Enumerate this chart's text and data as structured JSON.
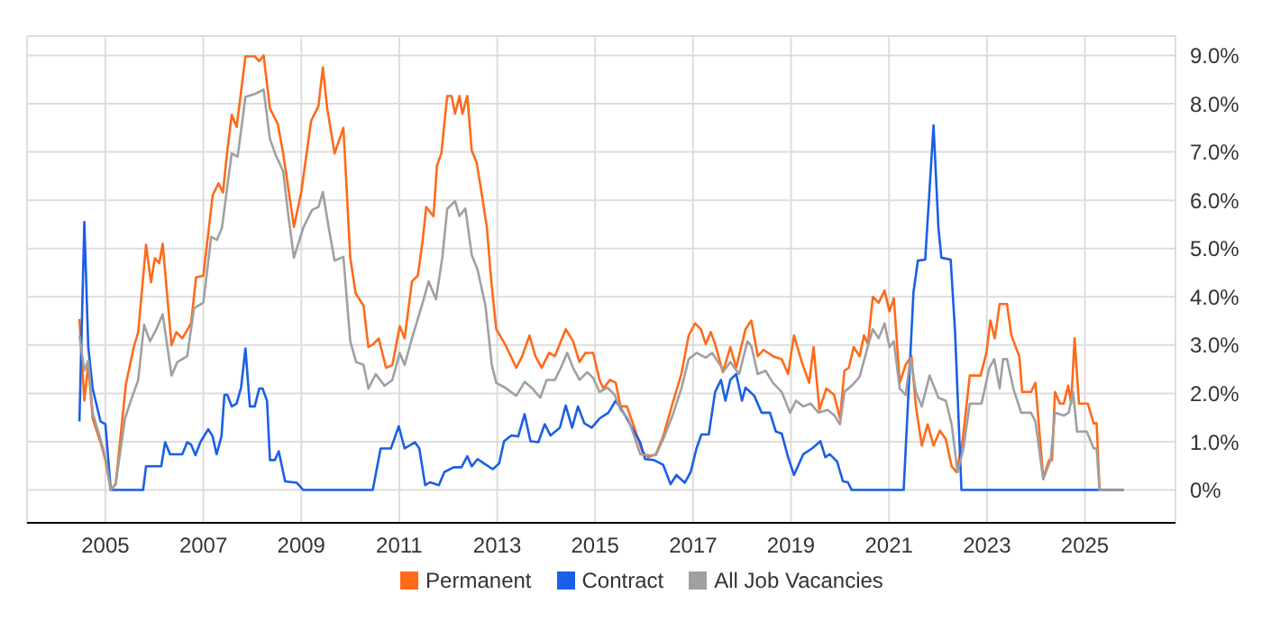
{
  "chart_data": {
    "type": "line",
    "xlim": [
      2003.4,
      2026.85
    ],
    "xticks": [
      2005,
      2007,
      2009,
      2011,
      2013,
      2015,
      2017,
      2019,
      2021,
      2023,
      2025
    ],
    "ylim": [
      -0.68,
      9.4
    ],
    "yticks": [
      {
        "value": 0,
        "label": "0%"
      },
      {
        "value": 1,
        "label": "1.0%"
      },
      {
        "value": 2,
        "label": "2.0%"
      },
      {
        "value": 3,
        "label": "3.0%"
      },
      {
        "value": 4,
        "label": "4.0%"
      },
      {
        "value": 5,
        "label": "5.0%"
      },
      {
        "value": 6,
        "label": "6.0%"
      },
      {
        "value": 7,
        "label": "7.0%"
      },
      {
        "value": 8,
        "label": "8.0%"
      },
      {
        "value": 9,
        "label": "9.0%"
      }
    ],
    "grid": true,
    "legend": "bottom",
    "marker": "none",
    "line_style": "solid",
    "series": [
      {
        "name": "Permanent",
        "color": "#ff6a1a",
        "x": [
          2004.47,
          2004.57,
          2004.65,
          2004.74,
          2004.9,
          2005.0,
          2005.11,
          2005.21,
          2005.42,
          2005.58,
          2005.67,
          2005.83,
          2005.93,
          2006.01,
          2006.1,
          2006.17,
          2006.35,
          2006.45,
          2006.57,
          2006.75,
          2006.85,
          2007.0,
          2007.19,
          2007.31,
          2007.4,
          2007.49,
          2007.58,
          2007.68,
          2007.86,
          2008.05,
          2008.14,
          2008.23,
          2008.36,
          2008.52,
          2008.63,
          2008.85,
          2009.0,
          2009.2,
          2009.35,
          2009.44,
          2009.53,
          2009.68,
          2009.86,
          2010.0,
          2010.11,
          2010.27,
          2010.37,
          2010.47,
          2010.58,
          2010.73,
          2010.86,
          2011.01,
          2011.11,
          2011.26,
          2011.38,
          2011.48,
          2011.55,
          2011.7,
          2011.77,
          2011.86,
          2011.98,
          2012.07,
          2012.14,
          2012.23,
          2012.29,
          2012.39,
          2012.48,
          2012.58,
          2012.69,
          2012.79,
          2012.88,
          2012.98,
          2013.16,
          2013.39,
          2013.51,
          2013.66,
          2013.78,
          2013.91,
          2014.06,
          2014.18,
          2014.3,
          2014.4,
          2014.55,
          2014.68,
          2014.8,
          2014.96,
          2015.09,
          2015.17,
          2015.3,
          2015.42,
          2015.52,
          2015.65,
          2015.8,
          2015.96,
          2016.08,
          2016.24,
          2016.39,
          2016.58,
          2016.76,
          2016.91,
          2017.04,
          2017.16,
          2017.26,
          2017.36,
          2017.45,
          2017.61,
          2017.76,
          2017.88,
          2018.07,
          2018.19,
          2018.32,
          2018.44,
          2018.63,
          2018.81,
          2018.94,
          2019.06,
          2019.22,
          2019.37,
          2019.46,
          2019.58,
          2019.72,
          2019.88,
          2020.0,
          2020.09,
          2020.18,
          2020.28,
          2020.4,
          2020.49,
          2020.57,
          2020.67,
          2020.79,
          2020.91,
          2021.01,
          2021.1,
          2021.22,
          2021.34,
          2021.46,
          2021.55,
          2021.67,
          2021.79,
          2021.91,
          2022.04,
          2022.16,
          2022.28,
          2022.38,
          2022.5,
          2022.65,
          2022.87,
          2022.99,
          2023.07,
          2023.16,
          2023.26,
          2023.41,
          2023.5,
          2023.66,
          2023.72,
          2023.9,
          2023.99,
          2024.15,
          2024.27,
          2024.33,
          2024.39,
          2024.49,
          2024.57,
          2024.66,
          2024.72,
          2024.79,
          2024.88,
          2025.06,
          2025.18,
          2025.24,
          2025.3,
          2025.79
        ],
        "values": [
          3.54,
          1.85,
          2.6,
          1.48,
          0.99,
          0.62,
          0,
          0.12,
          2.2,
          2.96,
          3.27,
          5.08,
          4.3,
          4.8,
          4.7,
          5.1,
          3.0,
          3.27,
          3.14,
          3.45,
          4.4,
          4.44,
          6.1,
          6.35,
          6.16,
          7.03,
          7.77,
          7.52,
          8.98,
          8.98,
          8.88,
          9.0,
          7.9,
          7.58,
          6.97,
          5.45,
          6.17,
          7.64,
          7.95,
          8.75,
          7.9,
          6.97,
          7.5,
          4.81,
          4.07,
          3.82,
          2.96,
          3.02,
          3.14,
          2.53,
          2.59,
          3.39,
          3.14,
          4.32,
          4.44,
          5.18,
          5.86,
          5.67,
          6.72,
          6.97,
          8.16,
          8.16,
          7.79,
          8.16,
          7.79,
          8.16,
          7.03,
          6.78,
          6.1,
          5.43,
          4.32,
          3.33,
          3.02,
          2.53,
          2.77,
          3.2,
          2.77,
          2.53,
          2.84,
          2.77,
          3.08,
          3.33,
          3.08,
          2.65,
          2.84,
          2.84,
          2.28,
          2.1,
          2.28,
          2.22,
          1.73,
          1.73,
          1.29,
          0.8,
          0.68,
          0.74,
          1.11,
          1.79,
          2.4,
          3.2,
          3.45,
          3.33,
          3.02,
          3.27,
          3.02,
          2.44,
          2.96,
          2.53,
          3.33,
          3.51,
          2.77,
          2.9,
          2.77,
          2.71,
          2.4,
          3.2,
          2.65,
          2.22,
          2.96,
          1.66,
          2.1,
          1.97,
          1.48,
          2.47,
          2.53,
          2.96,
          2.77,
          3.2,
          3.02,
          4.0,
          3.88,
          4.13,
          3.7,
          3.97,
          2.22,
          2.59,
          2.77,
          1.73,
          0.92,
          1.36,
          0.92,
          1.23,
          1.05,
          0.49,
          0.37,
          0.99,
          2.37,
          2.37,
          2.84,
          3.51,
          3.14,
          3.85,
          3.85,
          3.2,
          2.77,
          2.03,
          2.03,
          2.22,
          0.25,
          0.62,
          0.62,
          2.03,
          1.79,
          1.79,
          2.16,
          1.79,
          3.14,
          1.79,
          1.79,
          1.38,
          1.38,
          0,
          0
        ]
      },
      {
        "name": "Contract",
        "color": "#1a5fe6",
        "x": [
          2004.47,
          2004.57,
          2004.65,
          2004.74,
          2004.9,
          2005.0,
          2005.06,
          2005.11,
          2005.77,
          2005.83,
          2006.14,
          2006.22,
          2006.32,
          2006.57,
          2006.67,
          2006.75,
          2006.84,
          2006.94,
          2007.1,
          2007.19,
          2007.27,
          2007.37,
          2007.43,
          2007.49,
          2007.58,
          2007.68,
          2007.77,
          2007.86,
          2007.95,
          2008.05,
          2008.14,
          2008.21,
          2008.3,
          2008.36,
          2008.46,
          2008.54,
          2008.67,
          2008.91,
          2009.04,
          2010.46,
          2010.62,
          2010.83,
          2010.99,
          2011.11,
          2011.32,
          2011.41,
          2011.53,
          2011.63,
          2011.81,
          2011.92,
          2012.11,
          2012.27,
          2012.39,
          2012.48,
          2012.6,
          2012.73,
          2012.91,
          2013.04,
          2013.14,
          2013.29,
          2013.43,
          2013.56,
          2013.68,
          2013.84,
          2013.97,
          2014.09,
          2014.28,
          2014.4,
          2014.53,
          2014.65,
          2014.78,
          2014.93,
          2015.09,
          2015.27,
          2015.42,
          2015.58,
          2015.75,
          2015.92,
          2016.02,
          2016.2,
          2016.39,
          2016.54,
          2016.66,
          2016.83,
          2016.95,
          2017.07,
          2017.17,
          2017.32,
          2017.45,
          2017.57,
          2017.66,
          2017.76,
          2017.88,
          2018.0,
          2018.07,
          2018.25,
          2018.4,
          2018.57,
          2018.69,
          2018.81,
          2018.94,
          2019.06,
          2019.25,
          2019.43,
          2019.6,
          2019.7,
          2019.79,
          2019.94,
          2020.06,
          2020.16,
          2020.24,
          2021.3,
          2021.5,
          2021.59,
          2021.74,
          2021.91,
          2022.01,
          2022.07,
          2022.26,
          2022.35,
          2022.48,
          2025.79
        ],
        "values": [
          1.42,
          5.55,
          2.96,
          2.1,
          1.42,
          1.36,
          0.62,
          0,
          0,
          0.49,
          0.49,
          0.99,
          0.74,
          0.74,
          0.99,
          0.94,
          0.72,
          0.99,
          1.26,
          1.11,
          0.74,
          1.11,
          1.97,
          1.97,
          1.73,
          1.79,
          2.12,
          2.93,
          1.73,
          1.73,
          2.1,
          2.1,
          1.85,
          0.62,
          0.62,
          0.8,
          0.18,
          0.15,
          0,
          0,
          0.86,
          0.86,
          1.32,
          0.86,
          0.99,
          0.86,
          0.1,
          0.16,
          0.1,
          0.37,
          0.47,
          0.47,
          0.7,
          0.49,
          0.64,
          0.55,
          0.43,
          0.55,
          1.01,
          1.13,
          1.11,
          1.57,
          1.01,
          0.99,
          1.36,
          1.13,
          1.29,
          1.75,
          1.29,
          1.73,
          1.38,
          1.29,
          1.48,
          1.6,
          1.85,
          1.6,
          1.29,
          0.99,
          0.64,
          0.62,
          0.52,
          0.12,
          0.31,
          0.15,
          0.37,
          0.86,
          1.15,
          1.15,
          2.03,
          2.28,
          1.85,
          2.28,
          2.4,
          1.85,
          2.12,
          1.95,
          1.6,
          1.6,
          1.21,
          1.17,
          0.68,
          0.31,
          0.74,
          0.86,
          1.01,
          0.68,
          0.74,
          0.59,
          0.18,
          0.16,
          0,
          0,
          4.09,
          4.75,
          4.77,
          7.55,
          5.43,
          4.81,
          4.77,
          3.27,
          0,
          0
        ]
      },
      {
        "name": "All Job Vacancies",
        "color": "#a0a0a0",
        "x": [
          2004.47,
          2004.57,
          2004.65,
          2004.74,
          2004.9,
          2005.0,
          2005.11,
          2005.21,
          2005.4,
          2005.52,
          2005.67,
          2005.79,
          2005.91,
          2006.04,
          2006.17,
          2006.35,
          2006.47,
          2006.67,
          2006.81,
          2007.0,
          2007.16,
          2007.28,
          2007.38,
          2007.49,
          2007.58,
          2007.7,
          2007.86,
          2008.05,
          2008.23,
          2008.36,
          2008.48,
          2008.63,
          2008.73,
          2008.85,
          2009.04,
          2009.22,
          2009.35,
          2009.44,
          2009.56,
          2009.68,
          2009.86,
          2010.0,
          2010.12,
          2010.27,
          2010.37,
          2010.52,
          2010.7,
          2010.86,
          2011.01,
          2011.11,
          2011.26,
          2011.48,
          2011.6,
          2011.75,
          2011.88,
          2011.98,
          2012.14,
          2012.23,
          2012.35,
          2012.48,
          2012.6,
          2012.76,
          2012.89,
          2012.98,
          2013.16,
          2013.39,
          2013.56,
          2013.72,
          2013.88,
          2014.01,
          2014.18,
          2014.3,
          2014.43,
          2014.55,
          2014.68,
          2014.84,
          2014.96,
          2015.09,
          2015.25,
          2015.4,
          2015.52,
          2015.67,
          2015.8,
          2015.92,
          2016.08,
          2016.24,
          2016.39,
          2016.58,
          2016.76,
          2016.91,
          2017.07,
          2017.26,
          2017.39,
          2017.51,
          2017.63,
          2017.76,
          2017.94,
          2018.11,
          2018.19,
          2018.32,
          2018.48,
          2018.63,
          2018.81,
          2018.98,
          2019.1,
          2019.25,
          2019.4,
          2019.56,
          2019.75,
          2019.89,
          2020.0,
          2020.09,
          2020.24,
          2020.4,
          2020.55,
          2020.67,
          2020.79,
          2020.91,
          2021.01,
          2021.1,
          2021.22,
          2021.34,
          2021.44,
          2021.55,
          2021.67,
          2021.83,
          2022.01,
          2022.16,
          2022.28,
          2022.4,
          2022.52,
          2022.65,
          2022.89,
          2023.05,
          2023.15,
          2023.26,
          2023.33,
          2023.41,
          2023.54,
          2023.7,
          2023.9,
          2023.99,
          2024.15,
          2024.3,
          2024.39,
          2024.57,
          2024.67,
          2024.76,
          2024.84,
          2025.04,
          2025.18,
          2025.24,
          2025.3,
          2025.79
        ],
        "values": [
          3.2,
          2.47,
          2.68,
          1.6,
          1.05,
          0.68,
          0,
          0.12,
          1.48,
          1.85,
          2.28,
          3.42,
          3.08,
          3.33,
          3.64,
          2.37,
          2.65,
          2.77,
          3.76,
          3.88,
          5.24,
          5.18,
          5.43,
          6.29,
          6.97,
          6.9,
          8.14,
          8.2,
          8.29,
          7.27,
          6.93,
          6.6,
          5.73,
          4.81,
          5.43,
          5.8,
          5.86,
          6.17,
          5.43,
          4.75,
          4.83,
          3.08,
          2.65,
          2.59,
          2.1,
          2.4,
          2.16,
          2.28,
          2.84,
          2.59,
          3.14,
          3.88,
          4.32,
          3.95,
          4.81,
          5.82,
          5.98,
          5.67,
          5.83,
          4.87,
          4.56,
          3.82,
          2.59,
          2.22,
          2.12,
          1.95,
          2.24,
          2.1,
          1.91,
          2.28,
          2.28,
          2.53,
          2.84,
          2.53,
          2.28,
          2.44,
          2.32,
          2.03,
          2.12,
          1.97,
          1.66,
          1.48,
          1.11,
          0.74,
          0.72,
          0.72,
          1.05,
          1.54,
          2.1,
          2.71,
          2.84,
          2.74,
          2.84,
          2.65,
          2.47,
          2.65,
          2.4,
          3.08,
          2.98,
          2.4,
          2.47,
          2.22,
          2.03,
          1.6,
          1.85,
          1.73,
          1.79,
          1.6,
          1.66,
          1.54,
          1.36,
          2.03,
          2.16,
          2.34,
          2.9,
          3.33,
          3.14,
          3.45,
          2.96,
          3.08,
          2.1,
          1.97,
          2.74,
          2.03,
          1.73,
          2.37,
          1.91,
          1.85,
          1.36,
          0.37,
          0.86,
          1.79,
          1.79,
          2.53,
          2.71,
          2.1,
          2.71,
          2.71,
          2.1,
          1.6,
          1.6,
          1.42,
          0.22,
          0.62,
          1.6,
          1.54,
          1.6,
          2.03,
          1.21,
          1.21,
          0.86,
          0.86,
          0,
          0
        ]
      }
    ]
  }
}
